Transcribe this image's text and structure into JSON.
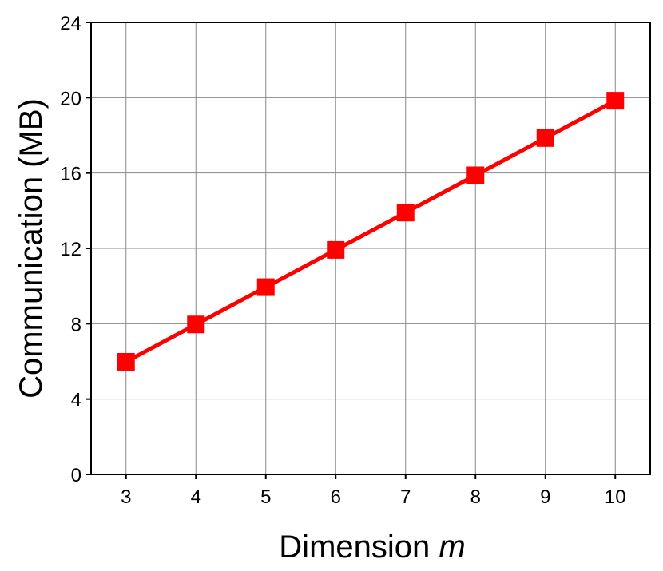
{
  "chart_data": {
    "type": "line",
    "x_label": "Dimension m",
    "y_label": "Communication (MB)",
    "x": [
      3,
      4,
      5,
      6,
      7,
      8,
      9,
      10
    ],
    "series": [
      {
        "color": "#ff0000",
        "values": [
          5.98,
          7.96,
          9.94,
          11.92,
          13.9,
          15.88,
          17.86,
          19.84
        ]
      }
    ],
    "xlim": [
      2.5,
      10.5
    ],
    "xticks": [
      3,
      4,
      5,
      6,
      7,
      8,
      9,
      10
    ],
    "ylim": [
      0,
      24
    ],
    "yticks": [
      0,
      4,
      8,
      12,
      16,
      20,
      24
    ],
    "grid": true,
    "marker": "square"
  }
}
